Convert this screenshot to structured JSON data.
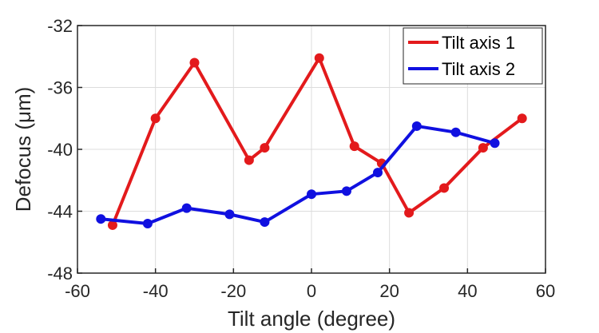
{
  "chart_data": {
    "type": "line",
    "title": "",
    "xlabel": "Tilt angle (degree)",
    "ylabel": "Defocus (μm)",
    "xlim": [
      -60,
      60
    ],
    "ylim": [
      -48,
      -32
    ],
    "xticks": [
      -60,
      -40,
      -20,
      0,
      20,
      40,
      60
    ],
    "yticks": [
      -48,
      -44,
      -40,
      -36,
      -32
    ],
    "xtick_labels": [
      "-60",
      "-40",
      "-20",
      "0",
      "20",
      "40",
      "60"
    ],
    "ytick_labels": [
      "-48",
      "-44",
      "-40",
      "-36",
      "-32"
    ],
    "grid": true,
    "legend_position": "top-right",
    "series": [
      {
        "name": "Tilt axis 1",
        "color": "#e31a1c",
        "x": [
          -51,
          -40,
          -30,
          -16,
          -12,
          2,
          11,
          18,
          25,
          34,
          44,
          54
        ],
        "y": [
          -44.9,
          -38.0,
          -34.4,
          -40.7,
          -39.9,
          -34.1,
          -39.8,
          -40.9,
          -44.1,
          -42.5,
          -39.9,
          -38.0
        ]
      },
      {
        "name": "Tilt axis 2",
        "color": "#1010e0",
        "x": [
          -54,
          -42,
          -32,
          -21,
          -12,
          0,
          9,
          17,
          27,
          37,
          47
        ],
        "y": [
          -44.5,
          -44.8,
          -43.8,
          -44.2,
          -44.7,
          -42.9,
          -42.7,
          -41.5,
          -38.5,
          -38.9,
          -39.6
        ]
      }
    ]
  }
}
